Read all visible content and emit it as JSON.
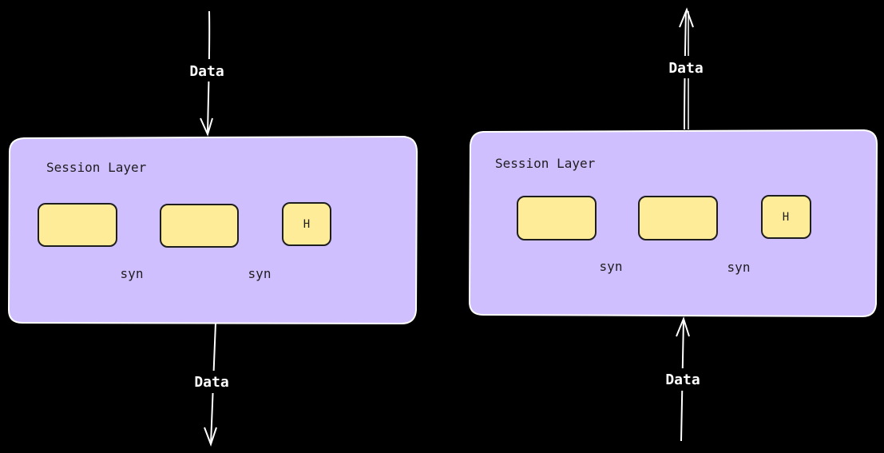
{
  "colors": {
    "background": "#000000",
    "layer_fill": "#d0bfff",
    "block_fill": "#ffec99",
    "stroke": "#ffffff",
    "ink": "#1e1e1e"
  },
  "left": {
    "layer_label": "Session Layer",
    "top_data_label": "Data",
    "bottom_data_label": "Data",
    "syn_1": "syn",
    "syn_2": "syn",
    "header_label": "H",
    "flow": "down"
  },
  "right": {
    "layer_label": "Session Layer",
    "top_data_label": "Data",
    "bottom_data_label": "Data",
    "syn_1": "syn",
    "syn_2": "syn",
    "header_label": "H",
    "flow": "up"
  }
}
